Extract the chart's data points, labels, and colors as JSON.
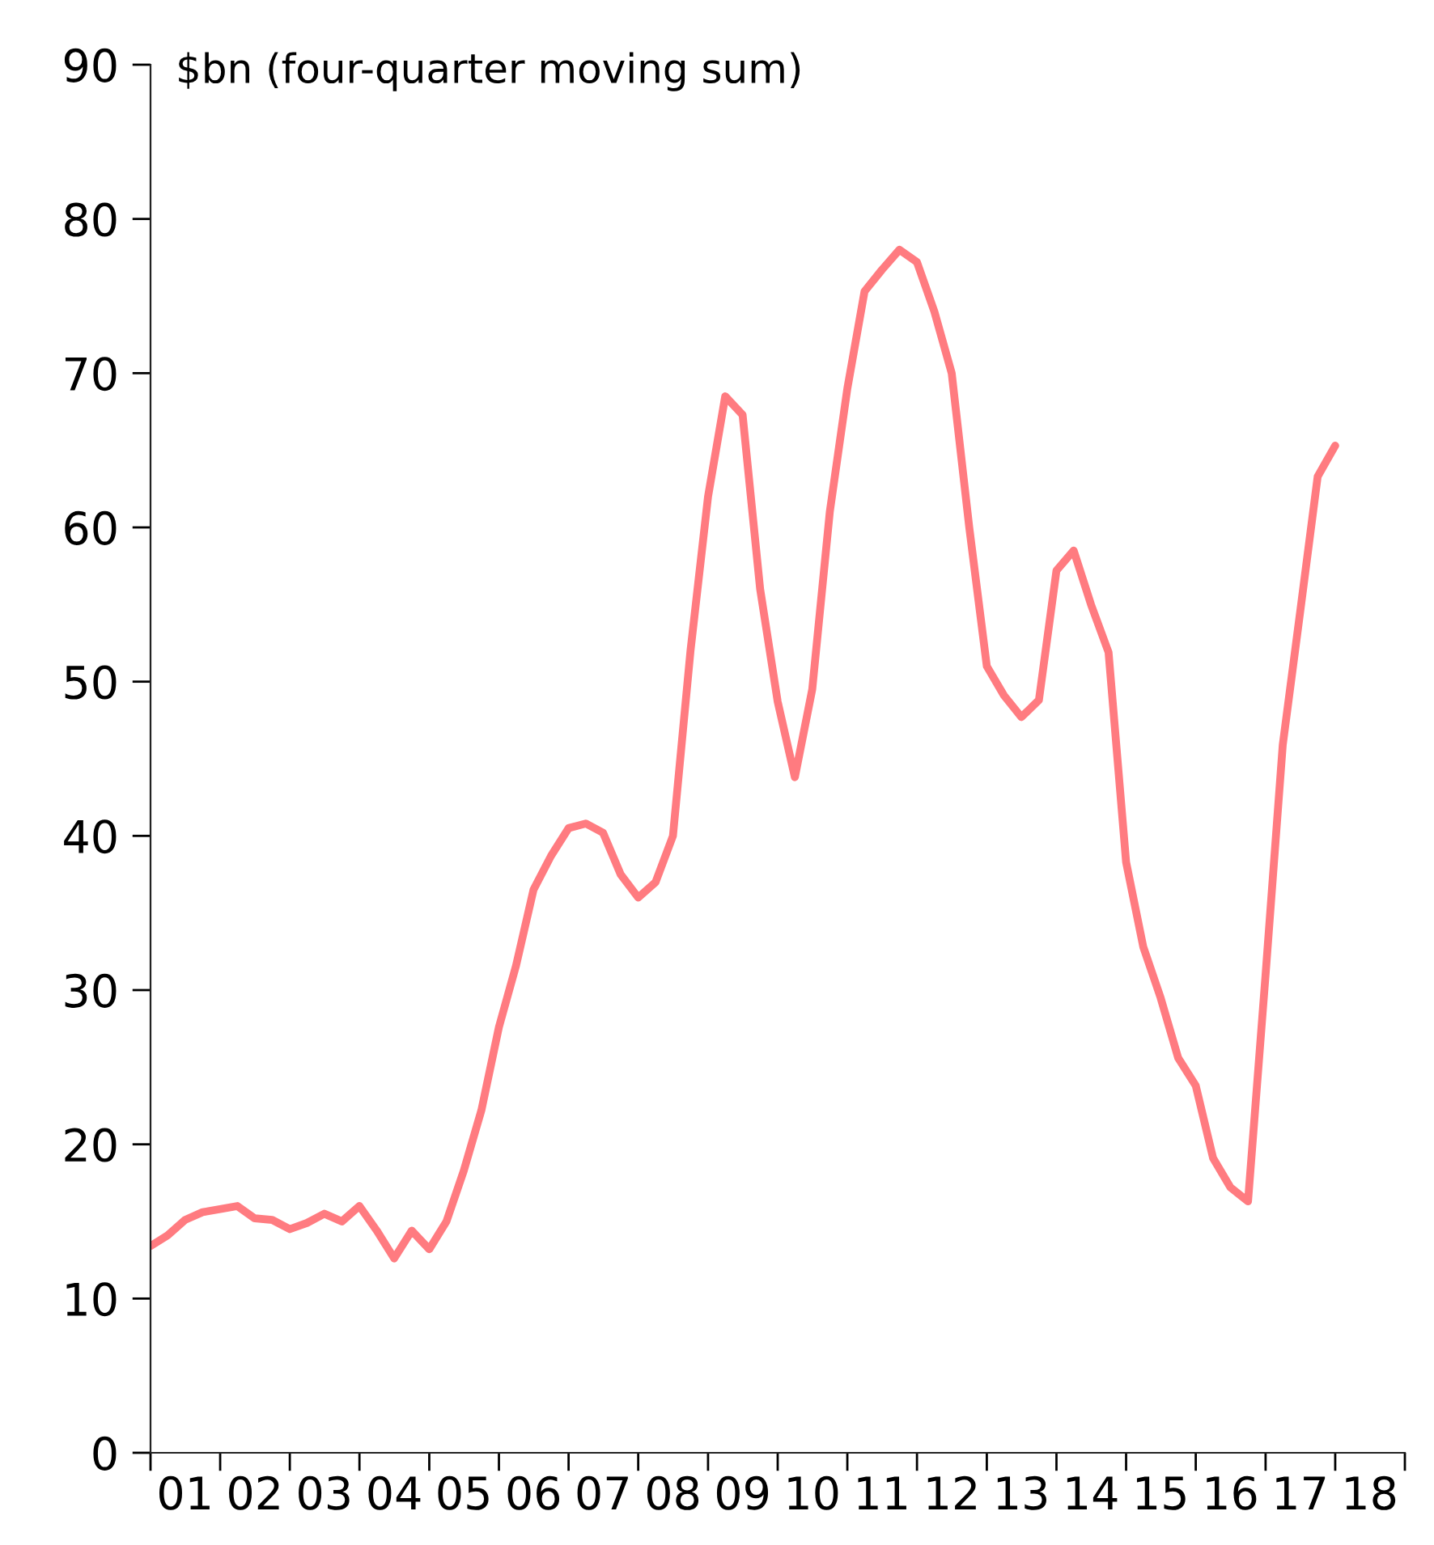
{
  "chart_data": {
    "type": "line",
    "ylabel": "$bn (four-quarter moving sum)",
    "x": [
      "2001-01",
      "2001-04",
      "2001-07",
      "2001-10",
      "2002-01",
      "2002-04",
      "2002-07",
      "2002-10",
      "2003-01",
      "2003-04",
      "2003-07",
      "2003-10",
      "2004-01",
      "2004-04",
      "2004-07",
      "2004-10",
      "2005-01",
      "2005-04",
      "2005-07",
      "2005-10",
      "2006-01",
      "2006-04",
      "2006-07",
      "2006-10",
      "2007-01",
      "2007-04",
      "2007-07",
      "2007-10",
      "2008-01",
      "2008-04",
      "2008-07",
      "2008-10",
      "2009-01",
      "2009-04",
      "2009-07",
      "2009-10",
      "2010-01",
      "2010-04",
      "2010-07",
      "2010-10",
      "2011-01",
      "2011-04",
      "2011-07",
      "2011-10",
      "2012-01",
      "2012-04",
      "2012-07",
      "2012-10",
      "2013-01",
      "2013-04",
      "2013-07",
      "2013-10",
      "2014-01",
      "2014-04",
      "2014-07",
      "2014-10",
      "2015-01",
      "2015-04",
      "2015-07",
      "2015-10",
      "2016-01",
      "2016-04",
      "2016-07",
      "2016-10",
      "2017-01",
      "2017-04",
      "2017-07",
      "2017-10",
      "2018-01"
    ],
    "series": [
      {
        "color": "#ff7b80",
        "values": [
          13.4,
          14.1,
          15.1,
          15.6,
          15.8,
          16.0,
          15.2,
          15.1,
          14.5,
          14.9,
          15.5,
          15.0,
          16.0,
          14.4,
          12.6,
          14.4,
          13.2,
          15.0,
          18.3,
          22.2,
          27.6,
          31.6,
          36.5,
          38.7,
          40.5,
          40.8,
          40.2,
          37.5,
          36.0,
          37.0,
          40.0,
          52.0,
          62.0,
          68.5,
          67.3,
          56.0,
          48.7,
          43.8,
          49.5,
          61.0,
          69.0,
          75.3,
          76.7,
          78.0,
          77.2,
          74.0,
          70.0,
          60.0,
          51.0,
          49.1,
          47.7,
          48.8,
          57.2,
          58.5,
          55.0,
          51.9,
          38.3,
          32.8,
          29.5,
          25.6,
          23.8,
          19.1,
          17.2,
          16.3,
          31.0,
          45.9,
          54.5,
          63.3,
          65.3
        ]
      }
    ],
    "xlim": [
      "2001-01",
      "2019-01"
    ],
    "xticks": [
      {
        "value": "2001-01",
        "label": null
      },
      {
        "value": "2001-07",
        "label": "01"
      },
      {
        "value": "2002-01",
        "label": null
      },
      {
        "value": "2002-07",
        "label": "02"
      },
      {
        "value": "2003-01",
        "label": null
      },
      {
        "value": "2003-07",
        "label": "03"
      },
      {
        "value": "2004-01",
        "label": null
      },
      {
        "value": "2004-07",
        "label": "04"
      },
      {
        "value": "2005-01",
        "label": null
      },
      {
        "value": "2005-07",
        "label": "05"
      },
      {
        "value": "2006-01",
        "label": null
      },
      {
        "value": "2006-07",
        "label": "06"
      },
      {
        "value": "2007-01",
        "label": null
      },
      {
        "value": "2007-07",
        "label": "07"
      },
      {
        "value": "2008-01",
        "label": null
      },
      {
        "value": "2008-07",
        "label": "08"
      },
      {
        "value": "2009-01",
        "label": null
      },
      {
        "value": "2009-07",
        "label": "09"
      },
      {
        "value": "2010-01",
        "label": null
      },
      {
        "value": "2010-07",
        "label": "10"
      },
      {
        "value": "2011-01",
        "label": null
      },
      {
        "value": "2011-07",
        "label": "11"
      },
      {
        "value": "2012-01",
        "label": null
      },
      {
        "value": "2012-07",
        "label": "12"
      },
      {
        "value": "2013-01",
        "label": null
      },
      {
        "value": "2013-07",
        "label": "13"
      },
      {
        "value": "2014-01",
        "label": null
      },
      {
        "value": "2014-07",
        "label": "14"
      },
      {
        "value": "2015-01",
        "label": null
      },
      {
        "value": "2015-07",
        "label": "15"
      },
      {
        "value": "2016-01",
        "label": null
      },
      {
        "value": "2016-07",
        "label": "16"
      },
      {
        "value": "2017-01",
        "label": null
      },
      {
        "value": "2017-07",
        "label": "17"
      },
      {
        "value": "2018-01",
        "label": null
      },
      {
        "value": "2018-07",
        "label": "18"
      },
      {
        "value": "2019-01",
        "label": null
      }
    ],
    "ylim": [
      0,
      90
    ],
    "yticks": [
      0,
      10,
      20,
      30,
      40,
      50,
      60,
      70,
      80,
      90
    ],
    "grid": false,
    "marker": "none",
    "line_style": "solid"
  }
}
